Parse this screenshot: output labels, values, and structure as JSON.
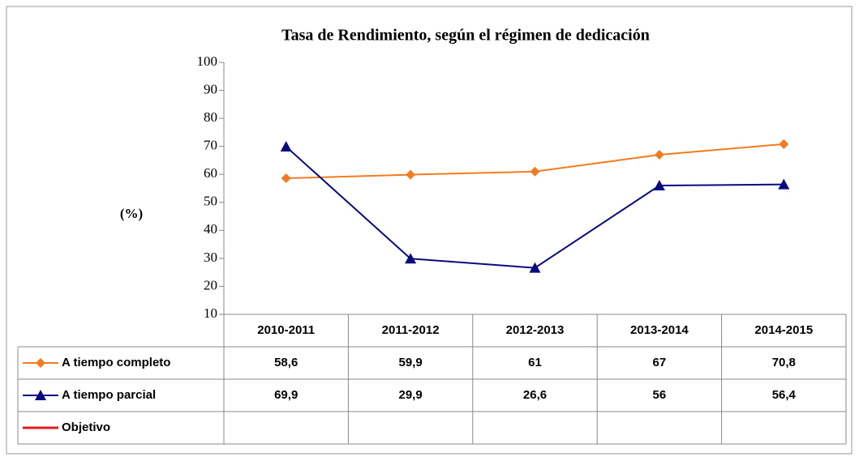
{
  "chart_data": {
    "type": "line",
    "title": "Tasa de Rendimiento, según el régimen de dedicación",
    "ylabel": "(%)",
    "categories": [
      "2010-2011",
      "2011-2012",
      "2012-2013",
      "2013-2014",
      "2014-2015"
    ],
    "series": [
      {
        "name": "A tiempo completo",
        "color": "#f47b20",
        "marker": "diamond",
        "values": [
          58.6,
          59.9,
          61,
          67,
          70.8
        ],
        "value_labels": [
          "58,6",
          "59,9",
          "61",
          "67",
          "70,8"
        ]
      },
      {
        "name": "A tiempo parcial",
        "color": "#0a0a80",
        "marker": "triangle",
        "values": [
          69.9,
          29.9,
          26.6,
          56,
          56.4
        ],
        "value_labels": [
          "69,9",
          "29,9",
          "26,6",
          "56",
          "56,4"
        ]
      },
      {
        "name": "Objetivo",
        "color": "#e31a1c",
        "values": [
          null,
          null,
          null,
          null,
          null
        ]
      }
    ],
    "ylim": [
      10,
      100
    ],
    "yticks": [
      10,
      20,
      30,
      40,
      50,
      60,
      70,
      80,
      90,
      100
    ],
    "grid": false
  }
}
